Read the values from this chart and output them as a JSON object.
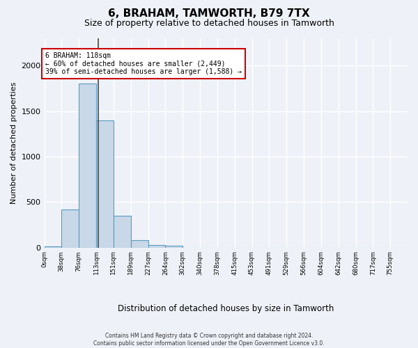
{
  "title": "6, BRAHAM, TAMWORTH, B79 7TX",
  "subtitle": "Size of property relative to detached houses in Tamworth",
  "xlabel": "Distribution of detached houses by size in Tamworth",
  "ylabel": "Number of detached properties",
  "bin_labels": [
    "0sqm",
    "38sqm",
    "76sqm",
    "113sqm",
    "151sqm",
    "189sqm",
    "227sqm",
    "264sqm",
    "302sqm",
    "340sqm",
    "378sqm",
    "415sqm",
    "453sqm",
    "491sqm",
    "529sqm",
    "566sqm",
    "604sqm",
    "642sqm",
    "680sqm",
    "717sqm",
    "755sqm"
  ],
  "bar_values": [
    15,
    420,
    1800,
    1400,
    350,
    80,
    30,
    20,
    0,
    0,
    0,
    0,
    0,
    0,
    0,
    0,
    0,
    0,
    0,
    0,
    0
  ],
  "bar_color": "#c8d8e8",
  "bar_edge_color": "#5a9abf",
  "marker_value": 118,
  "marker_color": "#444444",
  "annotation_line1": "6 BRAHAM: 118sqm",
  "annotation_line2": "← 60% of detached houses are smaller (2,449)",
  "annotation_line3": "39% of semi-detached houses are larger (1,588) →",
  "annotation_box_color": "#ffffff",
  "annotation_box_edge_color": "#cc0000",
  "ylim": [
    0,
    2300
  ],
  "background_color": "#eef2f8",
  "grid_color": "#ffffff",
  "footnote_line1": "Contains HM Land Registry data © Crown copyright and database right 2024.",
  "footnote_line2": "Contains public sector information licensed under the Open Government Licence v3.0.",
  "bin_width": 38
}
